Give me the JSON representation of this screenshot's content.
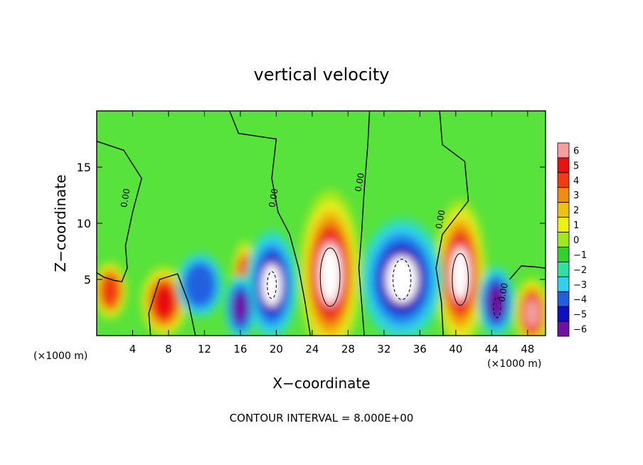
{
  "chart_data": {
    "type": "heatmap",
    "title": "vertical velocity",
    "xlabel": "X−coordinate",
    "ylabel": "Z−coordinate",
    "x_unit_label_left": "(×1000 m)",
    "x_unit_label_right": "(×1000 m)",
    "footer": "CONTOUR INTERVAL = 8.000E+00",
    "xlim": [
      0,
      50
    ],
    "ylim": [
      0,
      20
    ],
    "x_ticks": [
      4,
      8,
      12,
      16,
      20,
      24,
      28,
      32,
      36,
      40,
      44,
      48
    ],
    "x_tick_labels": [
      "4",
      "8",
      "12",
      "16",
      "20",
      "24",
      "28",
      "32",
      "36",
      "40",
      "44",
      "48"
    ],
    "y_ticks": [
      5,
      10,
      15
    ],
    "y_tick_labels": [
      "5",
      "10",
      "15"
    ],
    "colorbar": {
      "levels": [
        6,
        5,
        4,
        3,
        2,
        1,
        0,
        -1,
        -2,
        -3,
        -4,
        -5,
        -6
      ],
      "labels": [
        "6",
        "5",
        "4",
        "3",
        "2",
        "1",
        "0",
        "−1",
        "−2",
        "−3",
        "−4",
        "−5",
        "−6"
      ],
      "colors": [
        "#f5a0a0",
        "#e81010",
        "#f03a10",
        "#f08a10",
        "#f0c010",
        "#f0f010",
        "#9ee81e",
        "#30d030",
        "#30e0a0",
        "#30d0f0",
        "#2060e0",
        "#1010c0",
        "#7010a0"
      ]
    },
    "contour_labels": [
      {
        "text": "0.00",
        "x": 3.5,
        "y": 12.2
      },
      {
        "text": "0.00",
        "x": 20.0,
        "y": 12.2
      },
      {
        "text": "0.00",
        "x": 29.6,
        "y": 13.6
      },
      {
        "text": "0.00",
        "x": 38.6,
        "y": 10.3
      },
      {
        "text": "0.00",
        "x": 45.6,
        "y": 3.8
      }
    ],
    "features": [
      {
        "type": "updraft",
        "x": 26,
        "z": 5.5,
        "max": 8
      },
      {
        "type": "updraft",
        "x": 40.5,
        "z": 5.5,
        "max": 8
      },
      {
        "type": "updraft",
        "x": 48.5,
        "z": 2.0,
        "max": 6
      },
      {
        "type": "updraft",
        "x": 7.5,
        "z": 3.0,
        "max": 5
      },
      {
        "type": "updraft",
        "x": 16.5,
        "z": 5.0,
        "max": 4
      },
      {
        "type": "updraft",
        "x": 1.5,
        "z": 4.0,
        "max": 4
      },
      {
        "type": "downdraft",
        "x": 19.5,
        "z": 4.5,
        "min": -8
      },
      {
        "type": "downdraft",
        "x": 34,
        "z": 5.0,
        "min": -8
      },
      {
        "type": "downdraft",
        "x": 44.5,
        "z": 3.0,
        "min": -7
      },
      {
        "type": "downdraft",
        "x": 16,
        "z": 2.5,
        "min": -6
      },
      {
        "type": "downdraft",
        "x": 11.5,
        "z": 4.5,
        "min": -4
      }
    ]
  }
}
